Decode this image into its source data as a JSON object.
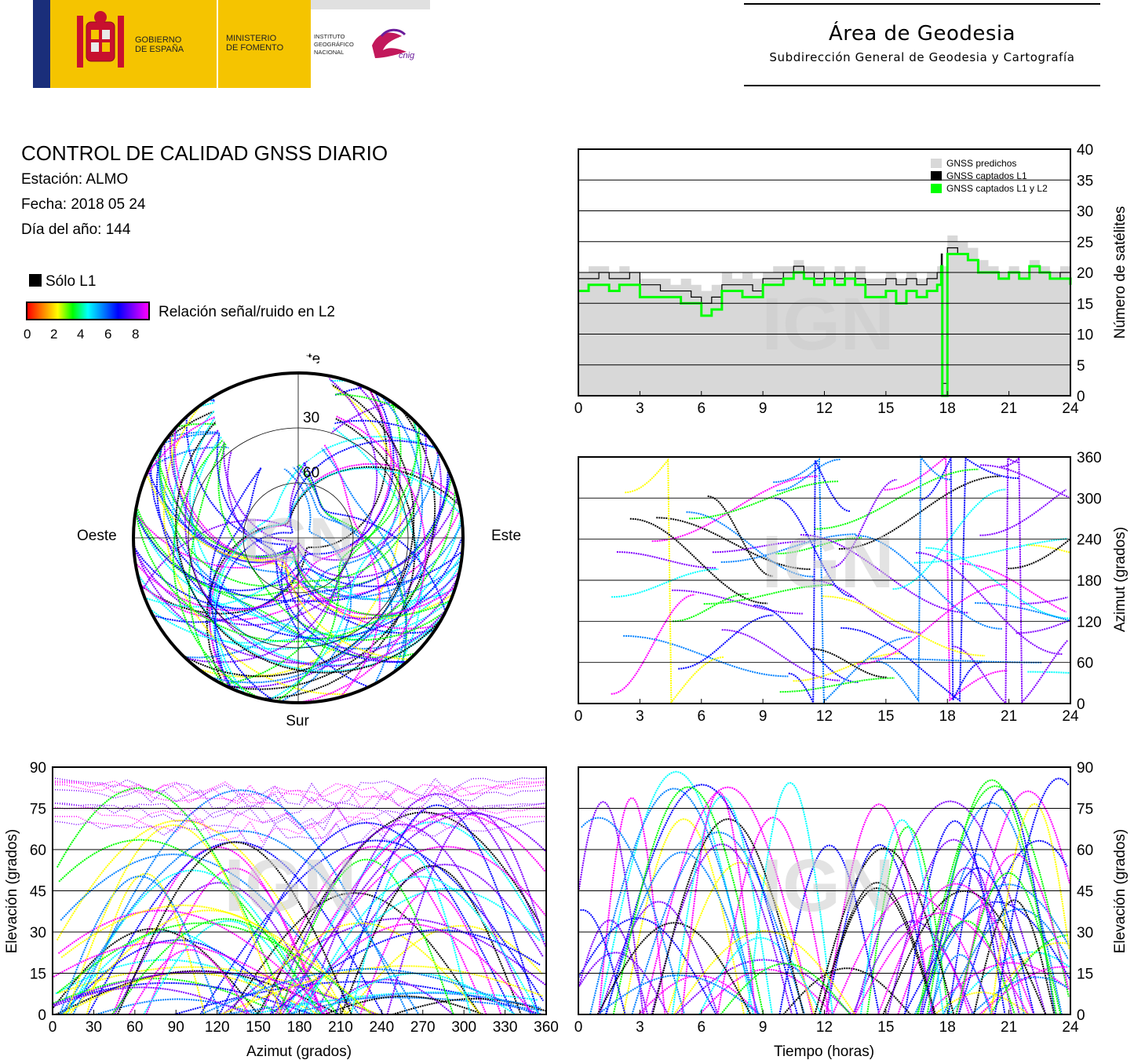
{
  "header": {
    "gov_line1": "GOBIERNO",
    "gov_line2": "DE ESPAÑA",
    "min_line1": "MINISTERIO",
    "min_line2": "DE FOMENTO",
    "ign_line1": "INSTITUTO",
    "ign_line2": "GEOGRÁFICO",
    "ign_line3": "NACIONAL",
    "cnig": "cnig",
    "area_title": "Área de Geodesia",
    "area_subtitle": "Subdirección General de Geodesia y Cartografía"
  },
  "report": {
    "title": "CONTROL DE CALIDAD GNSS DIARIO",
    "station": "Estación: ALMO",
    "date": "Fecha: 2018 05 24",
    "doy": "Día del año: 144"
  },
  "legend": {
    "l1_only": "Sólo L1",
    "snr_label": "Relación señal/ruido en L2",
    "snr_ticks": [
      "0",
      "2",
      "4",
      "6",
      "8"
    ],
    "colormap": [
      "#ff0000",
      "#ff8000",
      "#ffff00",
      "#00ff00",
      "#00ffff",
      "#0080ff",
      "#0000ff",
      "#8000ff",
      "#ff00ff"
    ]
  },
  "watermark": "IGN",
  "chart_data": [
    {
      "type": "line",
      "id": "satellite-count",
      "ylabel": "Número de satélites",
      "x_ticks": [
        "0",
        "3",
        "6",
        "9",
        "12",
        "15",
        "18",
        "21",
        "24"
      ],
      "y_ticks": [
        "0",
        "5",
        "10",
        "15",
        "20",
        "25",
        "30",
        "35",
        "40"
      ],
      "xlim": [
        0,
        24
      ],
      "ylim": [
        0,
        40
      ],
      "legend": [
        "GNSS predichos",
        "GNSS captados L1",
        "GNSS captados L1 y L2"
      ],
      "series": [
        {
          "name": "GNSS predichos",
          "color": "#d8d8d8",
          "x": [
            0,
            0.5,
            1,
            1.5,
            2,
            2.5,
            3,
            3.5,
            4,
            4.5,
            5,
            5.5,
            6,
            6.5,
            7,
            7.5,
            8,
            8.5,
            9,
            9.5,
            10,
            10.5,
            11,
            11.5,
            12,
            12.5,
            13,
            13.5,
            14,
            14.5,
            15,
            15.5,
            16,
            16.5,
            17,
            17.5,
            18,
            18.5,
            19,
            19.5,
            20,
            20.5,
            21,
            21.5,
            22,
            22.5,
            23,
            23.5,
            24
          ],
          "y": [
            20,
            21,
            21,
            20,
            21,
            20,
            19,
            19,
            19,
            18,
            19,
            18,
            17,
            18,
            20,
            19,
            20,
            19,
            20,
            21,
            21,
            22,
            21,
            21,
            20,
            21,
            20,
            21,
            19,
            19,
            20,
            19,
            20,
            19,
            20,
            21,
            26,
            25,
            24,
            22,
            21,
            20,
            21,
            20,
            22,
            21,
            20,
            21,
            21
          ]
        },
        {
          "name": "GNSS captados L1",
          "color": "#000000",
          "x": [
            0,
            0.5,
            1,
            1.5,
            2,
            2.5,
            3,
            3.5,
            4,
            4.5,
            5,
            5.5,
            6,
            6.5,
            7,
            7.5,
            8,
            8.5,
            9,
            9.5,
            10,
            10.5,
            11,
            11.5,
            12,
            12.5,
            13,
            13.5,
            14,
            14.5,
            15,
            15.5,
            16,
            16.5,
            17,
            17.5,
            17.7,
            17.75,
            18,
            18.5,
            19,
            19.5,
            20,
            20.5,
            21,
            21.5,
            22,
            22.5,
            23,
            23.5,
            24
          ],
          "y": [
            19,
            19,
            20,
            19,
            19,
            20,
            18,
            18,
            17,
            17,
            17,
            16,
            15,
            16,
            18,
            18,
            18,
            17,
            19,
            19,
            20,
            21,
            20,
            19,
            20,
            19,
            20,
            19,
            18,
            18,
            19,
            18,
            19,
            18,
            19,
            20,
            23,
            2,
            24,
            23,
            22,
            20,
            20,
            19,
            20,
            19,
            21,
            20,
            19,
            20,
            19
          ]
        },
        {
          "name": "GNSS captados L1 y L2",
          "color": "#00ff00",
          "x": [
            0,
            0.5,
            1,
            1.5,
            2,
            2.5,
            3,
            3.5,
            4,
            4.5,
            5,
            5.5,
            6,
            6.5,
            7,
            7.5,
            8,
            8.5,
            9,
            9.5,
            10,
            10.5,
            11,
            11.5,
            12,
            12.5,
            13,
            13.5,
            14,
            14.5,
            15,
            15.5,
            16,
            16.5,
            17,
            17.5,
            17.7,
            17.75,
            18,
            18.5,
            19,
            19.5,
            20,
            20.5,
            21,
            21.5,
            22,
            22.5,
            23,
            23.5,
            24
          ],
          "y": [
            17,
            18,
            18,
            17,
            18,
            18,
            16,
            16,
            16,
            16,
            15,
            15,
            13,
            14,
            17,
            17,
            16,
            16,
            18,
            18,
            19,
            20,
            19,
            18,
            19,
            18,
            19,
            18,
            16,
            16,
            17,
            15,
            17,
            16,
            17,
            18,
            21,
            0,
            23,
            23,
            22,
            20,
            20,
            19,
            20,
            19,
            21,
            20,
            19,
            19,
            18
          ]
        }
      ]
    },
    {
      "type": "scatter",
      "id": "skyplot",
      "cardinal": {
        "north": "Norte",
        "south": "Sur",
        "east": "Este",
        "west": "Oeste"
      },
      "elevation_rings": [
        "30",
        "60"
      ],
      "note": "Polar sky plot of satellite tracks (azimuth / elevation), colored by L2 SNR"
    },
    {
      "type": "scatter",
      "id": "azimuth-vs-time",
      "ylabel": "Azimut (grados)",
      "x_ticks": [
        "0",
        "3",
        "6",
        "9",
        "12",
        "15",
        "18",
        "21",
        "24"
      ],
      "y_ticks": [
        "0",
        "60",
        "120",
        "180",
        "240",
        "300",
        "360"
      ],
      "xlim": [
        0,
        24
      ],
      "ylim": [
        0,
        360
      ]
    },
    {
      "type": "scatter",
      "id": "elevation-vs-azimuth",
      "xlabel": "Azimut (grados)",
      "ylabel": "Elevación (grados)",
      "x_ticks": [
        "0",
        "30",
        "60",
        "90",
        "120",
        "150",
        "180",
        "210",
        "240",
        "270",
        "300",
        "330",
        "360"
      ],
      "y_ticks": [
        "0",
        "15",
        "30",
        "45",
        "60",
        "75",
        "90"
      ],
      "xlim": [
        0,
        360
      ],
      "ylim": [
        0,
        90
      ]
    },
    {
      "type": "scatter",
      "id": "elevation-vs-time",
      "xlabel": "Tiempo (horas)",
      "ylabel": "Elevación (grados)",
      "x_ticks": [
        "0",
        "3",
        "6",
        "9",
        "12",
        "15",
        "18",
        "21",
        "24"
      ],
      "y_ticks": [
        "0",
        "15",
        "30",
        "45",
        "60",
        "75",
        "90"
      ],
      "xlim": [
        0,
        24
      ],
      "ylim": [
        0,
        90
      ]
    }
  ]
}
